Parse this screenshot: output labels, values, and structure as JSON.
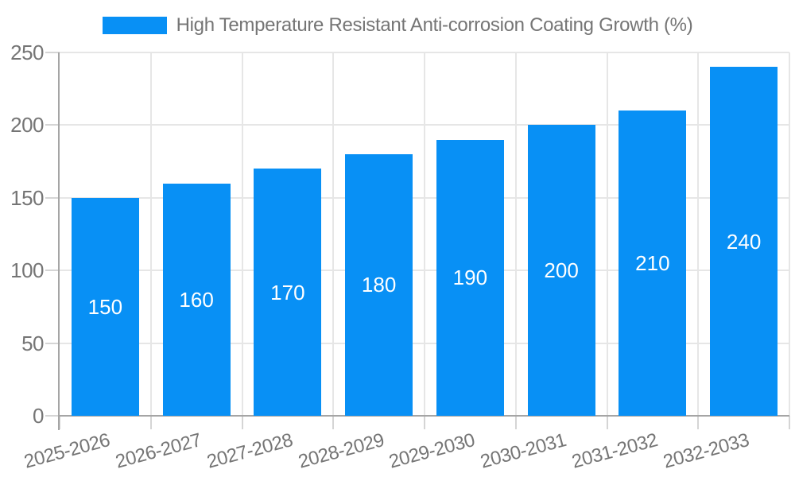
{
  "chart_data": {
    "type": "bar",
    "title": "High Temperature Resistant Anti-corrosion Coating Growth (%)",
    "categories": [
      "2025-2026",
      "2026-2027",
      "2027-2028",
      "2028-2029",
      "2029-2030",
      "2030-2031",
      "2031-2032",
      "2032-2033"
    ],
    "values": [
      150,
      160,
      170,
      180,
      190,
      200,
      210,
      240
    ],
    "value_labels": [
      "150",
      "160",
      "170",
      "180",
      "190",
      "200",
      "210",
      "240"
    ],
    "ytick_labels": [
      "0",
      "50",
      "100",
      "150",
      "200",
      "250"
    ],
    "ylim": [
      0,
      250
    ],
    "ytick_step": 50,
    "xlabel": "",
    "ylabel": "",
    "grid": true,
    "legend_position": "top",
    "x_label_rotation_deg": -15,
    "colors": {
      "bar": "#0890f5",
      "value_label": "#ffffff",
      "axis_text": "#757575",
      "gridline": "#e6e6e6",
      "axis_line": "#a5a5a5",
      "tick": "#d5d5d5",
      "background": "#ffffff"
    }
  }
}
